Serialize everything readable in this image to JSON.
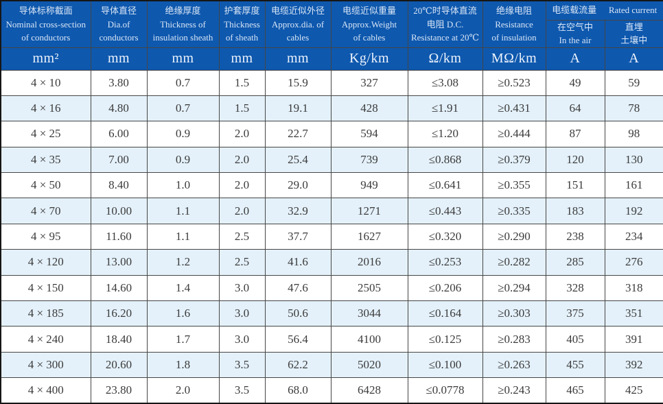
{
  "colors": {
    "header_bg": "#0e58ae",
    "header_text": "#d9e6f6",
    "unit_text": "#eef4fc",
    "row_alt_bg": "#e4f1fa",
    "row_bg": "#ffffff",
    "data_text": "#3b3b3b",
    "border_inner": "#454545",
    "border_outer": "#161616"
  },
  "header": {
    "groups": [
      {
        "lines": [
          "导体标称截面",
          "Nominal cross-section",
          "of conductors"
        ],
        "unit": "mm²"
      },
      {
        "lines": [
          "导体直径",
          "Dia.of",
          "conductors"
        ],
        "unit": "mm"
      },
      {
        "lines": [
          "绝缘厚度",
          "Thickness of",
          "insulation sheath"
        ],
        "unit": "mm"
      },
      {
        "lines": [
          "护套厚度",
          "Thickness",
          "of sheath"
        ],
        "unit": "mm"
      },
      {
        "lines": [
          "电缆近似外径",
          "Approx.dia. of",
          "cables"
        ],
        "unit": "mm"
      },
      {
        "lines": [
          "电缆近似重量",
          "Approx.Weight",
          "of cables"
        ],
        "unit": "Kg/km"
      },
      {
        "lines": [
          "20℃时导体直流",
          "电阻 D.C.",
          "Resistance at 20℃"
        ],
        "unit": "Ω/km"
      },
      {
        "lines": [
          "绝缘电阻",
          "Resistance",
          "of insulation"
        ],
        "unit": "MΩ/km"
      }
    ],
    "current_group": {
      "zh": "电缆载流量",
      "en": "Rated current",
      "sub": [
        {
          "lines": [
            "在空气中",
            "In the air"
          ],
          "unit": "A"
        },
        {
          "lines": [
            "直埋",
            "土壤中"
          ],
          "unit": "A"
        }
      ]
    }
  },
  "rows": [
    [
      "4 × 10",
      "3.80",
      "0.7",
      "1.5",
      "15.9",
      "327",
      "≤3.08",
      "≥0.523",
      "49",
      "59"
    ],
    [
      "4 × 16",
      "4.80",
      "0.7",
      "1.5",
      "19.1",
      "428",
      "≤1.91",
      "≥0.431",
      "64",
      "78"
    ],
    [
      "4 × 25",
      "6.00",
      "0.9",
      "2.0",
      "22.7",
      "594",
      "≤1.20",
      "≥0.444",
      "87",
      "98"
    ],
    [
      "4 × 35",
      "7.00",
      "0.9",
      "2.0",
      "25.4",
      "739",
      "≤0.868",
      "≥0.379",
      "120",
      "130"
    ],
    [
      "4 × 50",
      "8.40",
      "1.0",
      "2.0",
      "29.0",
      "949",
      "≤0.641",
      "≥0.355",
      "151",
      "161"
    ],
    [
      "4 × 70",
      "10.00",
      "1.1",
      "2.0",
      "32.9",
      "1271",
      "≤0.443",
      "≥0.335",
      "183",
      "192"
    ],
    [
      "4 × 95",
      "11.60",
      "1.1",
      "2.5",
      "37.7",
      "1627",
      "≤0.320",
      "≥0.290",
      "238",
      "234"
    ],
    [
      "4 × 120",
      "13.00",
      "1.2",
      "2.5",
      "41.6",
      "2016",
      "≤0.253",
      "≥0.282",
      "285",
      "276"
    ],
    [
      "4 × 150",
      "14.60",
      "1.4",
      "3.0",
      "47.6",
      "2505",
      "≤0.206",
      "≥0.294",
      "328",
      "318"
    ],
    [
      "4 × 185",
      "16.20",
      "1.6",
      "3.0",
      "50.6",
      "3044",
      "≤0.164",
      "≥0.303",
      "375",
      "351"
    ],
    [
      "4 × 240",
      "18.40",
      "1.7",
      "3.0",
      "56.4",
      "4100",
      "≤0.125",
      "≥0.283",
      "405",
      "391"
    ],
    [
      "4 × 300",
      "20.60",
      "1.8",
      "3.5",
      "62.2",
      "5020",
      "≤0.100",
      "≥0.263",
      "455",
      "392"
    ],
    [
      "4 × 400",
      "23.80",
      "2.0",
      "3.5",
      "68.0",
      "6428",
      "≤0.0778",
      "≥0.243",
      "465",
      "425"
    ]
  ]
}
